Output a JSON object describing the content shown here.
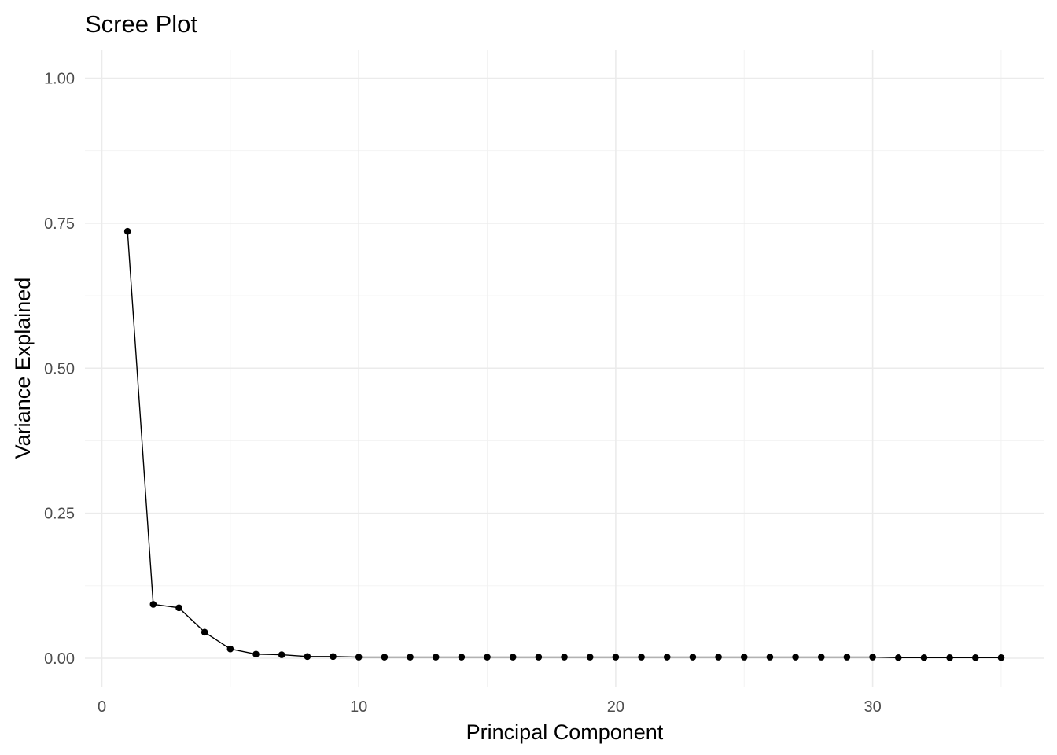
{
  "chart_data": {
    "type": "line",
    "title": "Scree Plot",
    "xlabel": "Principal Component",
    "ylabel": "Variance Explained",
    "xlim": [
      0,
      35
    ],
    "ylim": [
      0,
      1
    ],
    "x_ticks": [
      0,
      10,
      20,
      30
    ],
    "x_tick_labels": [
      "0",
      "10",
      "20",
      "30"
    ],
    "y_ticks": [
      0,
      0.25,
      0.5,
      0.75,
      1
    ],
    "y_tick_labels": [
      "0.00",
      "0.25",
      "0.50",
      "0.75",
      "1.00"
    ],
    "grid": true,
    "legend": "none",
    "colors": {
      "line": "#000000",
      "point": "#000000",
      "grid": "#ebebeb"
    },
    "x": [
      1,
      2,
      3,
      4,
      5,
      6,
      7,
      8,
      9,
      10,
      11,
      12,
      13,
      14,
      15,
      16,
      17,
      18,
      19,
      20,
      21,
      22,
      23,
      24,
      25,
      26,
      27,
      28,
      29,
      30,
      31,
      32,
      33,
      34,
      35
    ],
    "series": [
      {
        "values": [
          0.736,
          0.093,
          0.087,
          0.045,
          0.016,
          0.007,
          0.006,
          0.003,
          0.003,
          0.002,
          0.002,
          0.002,
          0.002,
          0.002,
          0.002,
          0.002,
          0.002,
          0.002,
          0.002,
          0.002,
          0.002,
          0.002,
          0.002,
          0.002,
          0.002,
          0.002,
          0.002,
          0.002,
          0.002,
          0.002,
          0.001,
          0.001,
          0.001,
          0.001,
          0.001
        ]
      }
    ]
  }
}
